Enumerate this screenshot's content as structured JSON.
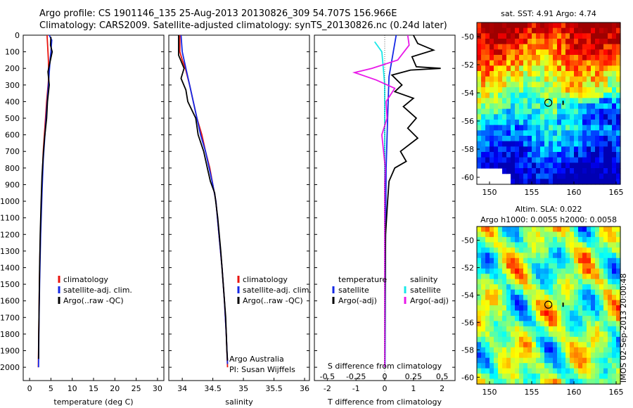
{
  "title_line1": "Argo profile: CS 1901146_135 25-Aug-2013 20130826_309 54.707S 156.966E",
  "title_line2": "Climatology: CARS2009. Satellite-adjusted climatology: synTS_20130826.nc (0.24d later)",
  "side_note": "IMOS 02-Sep-2013 20:00:48",
  "colors": {
    "climatology": "#e8140e",
    "satellite": "#1428e6",
    "argo": "#000000",
    "sat_salinity": "#18e8e8",
    "argo_salinity": "#e818e8"
  },
  "chart_data": [
    {
      "id": "temperature",
      "type": "line",
      "xlabel": "temperature (deg C)",
      "ylabel": "",
      "xlim": [
        -1.5,
        31.5
      ],
      "ylim": [
        2080,
        0
      ],
      "xticks": [
        0,
        5,
        10,
        15,
        20,
        25,
        30
      ],
      "yticks": [
        0,
        100,
        200,
        300,
        400,
        500,
        600,
        700,
        800,
        900,
        1000,
        1100,
        1200,
        1300,
        1400,
        1500,
        1600,
        1700,
        1800,
        1900,
        2000
      ],
      "legend": [
        "climatology",
        "satellite-adj. clim.",
        "Argo(..raw -QC)"
      ],
      "legend_loc": "lower-left",
      "series": [
        {
          "name": "climatology",
          "color": "red",
          "points": [
            [
              4.1,
              0
            ],
            [
              4.3,
              100
            ],
            [
              4.4,
              150
            ],
            [
              4.5,
              250
            ],
            [
              4.0,
              400
            ],
            [
              3.6,
              550
            ],
            [
              3.2,
              700
            ],
            [
              2.9,
              900
            ],
            [
              2.65,
              1100
            ],
            [
              2.45,
              1300
            ],
            [
              2.3,
              1500
            ],
            [
              2.2,
              1700
            ],
            [
              2.1,
              1900
            ],
            [
              2.05,
              2000
            ]
          ]
        },
        {
          "name": "satellite-adj. clim.",
          "color": "blue",
          "points": [
            [
              4.6,
              0
            ],
            [
              5.2,
              30
            ],
            [
              5.0,
              100
            ],
            [
              4.8,
              150
            ],
            [
              4.4,
              300
            ],
            [
              4.0,
              450
            ],
            [
              3.6,
              600
            ],
            [
              3.2,
              750
            ],
            [
              2.9,
              950
            ],
            [
              2.6,
              1200
            ],
            [
              2.35,
              1500
            ],
            [
              2.2,
              1750
            ],
            [
              2.1,
              2000
            ]
          ]
        },
        {
          "name": "Argo(..raw -QC)",
          "color": "black",
          "points": [
            [
              5.0,
              10
            ],
            [
              4.9,
              60
            ],
            [
              5.3,
              100
            ],
            [
              4.8,
              160
            ],
            [
              4.3,
              220
            ],
            [
              4.6,
              300
            ],
            [
              4.2,
              400
            ],
            [
              4.0,
              500
            ],
            [
              3.5,
              620
            ],
            [
              3.2,
              720
            ],
            [
              2.9,
              850
            ],
            [
              2.7,
              1000
            ],
            [
              2.5,
              1200
            ],
            [
              2.35,
              1400
            ],
            [
              2.25,
              1600
            ],
            [
              2.15,
              1800
            ],
            [
              2.1,
              1950
            ]
          ]
        }
      ]
    },
    {
      "id": "salinity",
      "type": "line",
      "xlabel": "salinity",
      "ylabel": "",
      "xlim": [
        33.78,
        36.08
      ],
      "ylim": [
        2080,
        0
      ],
      "xticks": [
        34,
        34.5,
        35,
        35.5,
        36
      ],
      "legend": [
        "climatology",
        "satellite-adj. clim.",
        "Argo(..raw -QC)"
      ],
      "legend_loc": "lower-right",
      "annotations": [
        "Argo Australia",
        "PI: Susan Wijffels"
      ],
      "series": [
        {
          "name": "climatology",
          "color": "red",
          "points": [
            [
              33.96,
              0
            ],
            [
              33.96,
              100
            ],
            [
              34.0,
              150
            ],
            [
              34.05,
              200
            ],
            [
              34.12,
              300
            ],
            [
              34.18,
              400
            ],
            [
              34.24,
              500
            ],
            [
              34.32,
              600
            ],
            [
              34.38,
              700
            ],
            [
              34.45,
              800
            ],
            [
              34.5,
              900
            ],
            [
              34.55,
              1000
            ],
            [
              34.6,
              1200
            ],
            [
              34.65,
              1400
            ],
            [
              34.69,
              1600
            ],
            [
              34.72,
              1800
            ],
            [
              34.74,
              2000
            ]
          ]
        },
        {
          "name": "satellite-adj. clim.",
          "color": "blue",
          "points": [
            [
              33.98,
              0
            ],
            [
              34.0,
              100
            ],
            [
              34.06,
              200
            ],
            [
              34.12,
              300
            ],
            [
              34.18,
              400
            ],
            [
              34.24,
              500
            ],
            [
              34.3,
              600
            ],
            [
              34.38,
              700
            ],
            [
              34.44,
              800
            ],
            [
              34.5,
              900
            ],
            [
              34.55,
              1000
            ],
            [
              34.6,
              1200
            ],
            [
              34.65,
              1400
            ],
            [
              34.69,
              1600
            ],
            [
              34.72,
              1800
            ],
            [
              34.74,
              1980
            ]
          ]
        },
        {
          "name": "Argo(..raw -QC)",
          "color": "black",
          "points": [
            [
              33.94,
              0
            ],
            [
              33.94,
              120
            ],
            [
              34.03,
              200
            ],
            [
              33.98,
              260
            ],
            [
              34.06,
              330
            ],
            [
              34.09,
              400
            ],
            [
              34.22,
              500
            ],
            [
              34.26,
              600
            ],
            [
              34.35,
              700
            ],
            [
              34.41,
              800
            ],
            [
              34.46,
              880
            ],
            [
              34.53,
              950
            ],
            [
              34.58,
              1100
            ],
            [
              34.63,
              1300
            ],
            [
              34.67,
              1500
            ],
            [
              34.71,
              1700
            ],
            [
              34.73,
              1900
            ],
            [
              34.74,
              1960
            ]
          ]
        }
      ]
    },
    {
      "id": "difference",
      "type": "line",
      "xlabel": "T difference from climatology",
      "top_xlabel": "S difference from climatology",
      "xlim": [
        -2.45,
        2.45
      ],
      "xticks": [
        -2,
        -1,
        0,
        1,
        2
      ],
      "s_xticks": [
        -0.5,
        -0.25,
        0,
        0.25,
        0.5
      ],
      "ylim": [
        2080,
        0
      ],
      "legend_headers": [
        "temperature",
        "salinity"
      ],
      "legend": [
        "satellite",
        "Argo(-adj)",
        "satellite",
        "Argo(-adj)"
      ],
      "legend_loc": "lower-center",
      "series": [
        {
          "name": "T satellite",
          "color": "blue",
          "points": [
            [
              0.4,
              0
            ],
            [
              0.3,
              100
            ],
            [
              0.15,
              250
            ],
            [
              0.1,
              500
            ],
            [
              0.05,
              800
            ],
            [
              0.03,
              1200
            ],
            [
              0.02,
              1600
            ],
            [
              0.01,
              2000
            ]
          ]
        },
        {
          "name": "T Argo",
          "color": "black",
          "points": [
            [
              1.0,
              0
            ],
            [
              1.15,
              50
            ],
            [
              1.7,
              90
            ],
            [
              0.95,
              130
            ],
            [
              1.1,
              190
            ],
            [
              1.95,
              200
            ],
            [
              0.9,
              210
            ],
            [
              0.25,
              240
            ],
            [
              0.6,
              300
            ],
            [
              0.35,
              340
            ],
            [
              1.0,
              380
            ],
            [
              0.65,
              430
            ],
            [
              1.1,
              500
            ],
            [
              0.8,
              560
            ],
            [
              1.15,
              620
            ],
            [
              0.55,
              700
            ],
            [
              0.75,
              760
            ],
            [
              0.35,
              800
            ],
            [
              0.15,
              880
            ],
            [
              0.1,
              1000
            ],
            [
              0.03,
              1200
            ],
            [
              0.01,
              1600
            ],
            [
              0.0,
              2000
            ]
          ]
        },
        {
          "name": "S satellite",
          "color": "cyan",
          "points": [
            [
              -0.35,
              40
            ],
            [
              -0.1,
              100
            ],
            [
              -0.05,
              200
            ],
            [
              0.0,
              300
            ],
            [
              0.0,
              600
            ],
            [
              0.0,
              1000
            ],
            [
              0.0,
              2000
            ]
          ]
        },
        {
          "name": "S Argo",
          "color": "magenta",
          "points": [
            [
              0.8,
              0
            ],
            [
              0.85,
              60
            ],
            [
              0.45,
              150
            ],
            [
              -0.45,
              200
            ],
            [
              -1.05,
              225
            ],
            [
              -0.3,
              270
            ],
            [
              0.35,
              320
            ],
            [
              0.05,
              400
            ],
            [
              0.08,
              500
            ],
            [
              -0.1,
              600
            ],
            [
              0.02,
              800
            ],
            [
              0.0,
              900
            ],
            [
              0.0,
              2000
            ]
          ]
        }
      ]
    },
    {
      "id": "sst_map",
      "type": "heatmap",
      "title": "sat. SST: 4.91  Argo: 4.74",
      "xlim": [
        148.5,
        165.5
      ],
      "ylim": [
        -60.5,
        -49
      ],
      "xticks": [
        150,
        155,
        160,
        165
      ],
      "yticks": [
        -50,
        -52,
        -54,
        -56,
        -58,
        -60
      ],
      "marker": [
        156.966,
        -54.707
      ]
    },
    {
      "id": "sla_map",
      "type": "heatmap",
      "title": "Altim. SLA: 0.022",
      "subtitle": "Argo h1000: 0.0055  h2000: 0.0058",
      "xlim": [
        148.5,
        165.5
      ],
      "ylim": [
        -60.5,
        -49
      ],
      "xticks": [
        150,
        155,
        160,
        165
      ],
      "yticks": [
        -50,
        -52,
        -54,
        -56,
        -58,
        -60
      ],
      "marker": [
        156.966,
        -54.707
      ]
    }
  ]
}
